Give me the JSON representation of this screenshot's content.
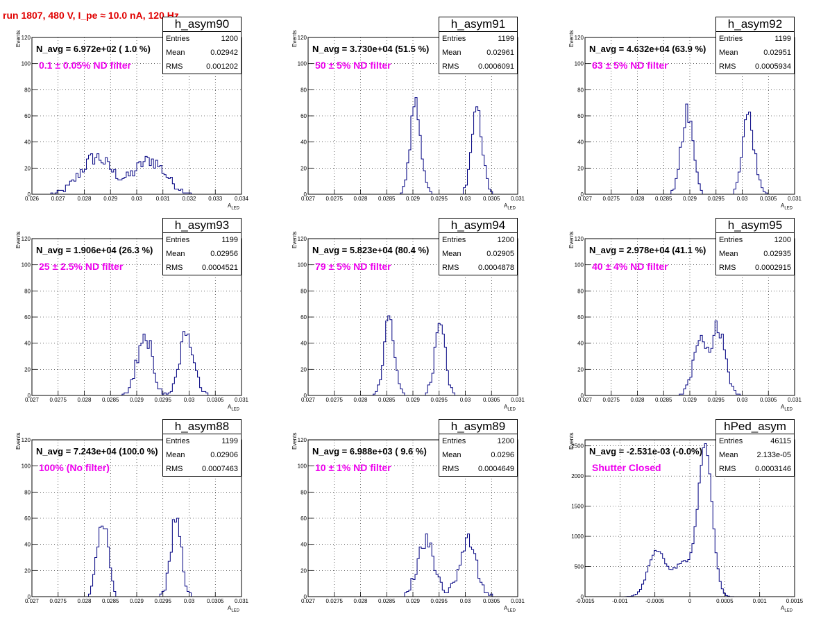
{
  "page_title": "run 1807,   480 V, I_pe ≈ 10.0 nA, 120 Hz",
  "axis": {
    "ylabel": "Events",
    "xlabel_main": "A",
    "xlabel_sub": "LED"
  },
  "stat_labels": {
    "entries": "Entries",
    "mean": "Mean",
    "rms": "RMS"
  },
  "colors": {
    "histogram": "#000080",
    "title": "#e00000",
    "filter_text": "#ee00ee"
  },
  "panels": [
    {
      "name": "h_asym90",
      "n_avg": "N_avg = 6.972e+02 ( 1.0 %)",
      "filter": "0.1 ± 0.05% ND filter",
      "entries": "1200",
      "mean": "0.02942",
      "rms": "0.001202"
    },
    {
      "name": "h_asym91",
      "n_avg": "N_avg = 3.730e+04 (51.5 %)",
      "filter": "50 ± 5% ND filter",
      "entries": "1199",
      "mean": "0.02961",
      "rms": "0.0006091"
    },
    {
      "name": "h_asym92",
      "n_avg": "N_avg = 4.632e+04 (63.9 %)",
      "filter": "63 ± 5% ND filter",
      "entries": "1199",
      "mean": "0.02951",
      "rms": "0.0005934"
    },
    {
      "name": "h_asym93",
      "n_avg": "N_avg = 1.906e+04 (26.3 %)",
      "filter": "25 ± 2.5% ND filter",
      "entries": "1199",
      "mean": "0.02956",
      "rms": "0.0004521"
    },
    {
      "name": "h_asym94",
      "n_avg": "N_avg = 5.823e+04 (80.4 %)",
      "filter": "79 ± 5% ND filter",
      "entries": "1200",
      "mean": "0.02905",
      "rms": "0.0004878"
    },
    {
      "name": "h_asym95",
      "n_avg": "N_avg = 2.978e+04 (41.1 %)",
      "filter": "40 ± 4% ND filter",
      "entries": "1200",
      "mean": "0.02935",
      "rms": "0.0002915"
    },
    {
      "name": "h_asym88",
      "n_avg": "N_avg = 7.243e+04 (100.0 %)",
      "filter": "100% (No filter)",
      "entries": "1199",
      "mean": "0.02906",
      "rms": "0.0007463"
    },
    {
      "name": "h_asym89",
      "n_avg": "N_avg = 6.988e+03 ( 9.6 %)",
      "filter": "10 ± 1% ND filter",
      "entries": "1200",
      "mean": "0.0296",
      "rms": "0.0004649"
    },
    {
      "name": "hPed_asym",
      "n_avg": "N_avg = -2.531e-03 (-0.0%)",
      "filter": "Shutter Closed",
      "entries": "46115",
      "mean": "2.133e-05",
      "rms": "0.0003146"
    }
  ],
  "chart_data": [
    {
      "type": "bar",
      "title": "h_asym90",
      "ylabel": "Events",
      "xlabel": "A_LED",
      "xlim": [
        0.026,
        0.034
      ],
      "ylim": [
        0,
        120
      ],
      "grid": true,
      "x_ticks": [
        "0.026",
        "0.027",
        "0.028",
        "0.029",
        "0.03",
        "0.031",
        "0.032",
        "0.033",
        "0.034"
      ],
      "y_ticks": [
        "0",
        "20",
        "40",
        "60",
        "80",
        "100",
        "120"
      ],
      "peaks": [
        {
          "center": 0.02845,
          "sigma": 0.0006,
          "amp": 28
        },
        {
          "center": 0.0305,
          "sigma": 0.0006,
          "amp": 26
        }
      ]
    },
    {
      "type": "bar",
      "title": "h_asym91",
      "ylabel": "Events",
      "xlabel": "A_LED",
      "xlim": [
        0.027,
        0.031
      ],
      "ylim": [
        0,
        120
      ],
      "grid": true,
      "x_ticks": [
        "0.027",
        "0.0275",
        "0.028",
        "0.0285",
        "0.029",
        "0.0295",
        "0.03",
        "0.0305",
        "0.031"
      ],
      "y_ticks": [
        "0",
        "20",
        "40",
        "60",
        "80",
        "100",
        "120"
      ],
      "peaks": [
        {
          "center": 0.02905,
          "sigma": 0.0001,
          "amp": 72
        },
        {
          "center": 0.03023,
          "sigma": 0.0001,
          "amp": 64
        }
      ]
    },
    {
      "type": "bar",
      "title": "h_asym92",
      "ylabel": "Events",
      "xlabel": "A_LED",
      "xlim": [
        0.027,
        0.031
      ],
      "ylim": [
        0,
        120
      ],
      "grid": true,
      "x_ticks": [
        "0.027",
        "0.0275",
        "0.028",
        "0.0285",
        "0.029",
        "0.0295",
        "0.03",
        "0.0305",
        "0.031"
      ],
      "y_ticks": [
        "0",
        "20",
        "40",
        "60",
        "80",
        "100",
        "120"
      ],
      "peaks": [
        {
          "center": 0.02895,
          "sigma": 0.00011,
          "amp": 62
        },
        {
          "center": 0.03012,
          "sigma": 0.00011,
          "amp": 62
        }
      ]
    },
    {
      "type": "bar",
      "title": "h_asym93",
      "ylabel": "Events",
      "xlabel": "A_LED",
      "xlim": [
        0.027,
        0.031
      ],
      "ylim": [
        0,
        120
      ],
      "grid": true,
      "x_ticks": [
        "0.027",
        "0.0275",
        "0.028",
        "0.0285",
        "0.029",
        "0.0295",
        "0.03",
        "0.0305",
        "0.031"
      ],
      "y_ticks": [
        "0",
        "20",
        "40",
        "60",
        "80",
        "100",
        "120"
      ],
      "peaks": [
        {
          "center": 0.02915,
          "sigma": 0.00014,
          "amp": 48
        },
        {
          "center": 0.02995,
          "sigma": 0.00014,
          "amp": 46
        }
      ]
    },
    {
      "type": "bar",
      "title": "h_asym94",
      "ylabel": "Events",
      "xlabel": "A_LED",
      "xlim": [
        0.027,
        0.031
      ],
      "ylim": [
        0,
        120
      ],
      "grid": true,
      "x_ticks": [
        "0.027",
        "0.0275",
        "0.028",
        "0.0285",
        "0.029",
        "0.0295",
        "0.03",
        "0.0305",
        "0.031"
      ],
      "y_ticks": [
        "0",
        "20",
        "40",
        "60",
        "80",
        "100",
        "120"
      ],
      "peaks": [
        {
          "center": 0.02855,
          "sigma": 0.0001,
          "amp": 58
        },
        {
          "center": 0.02952,
          "sigma": 0.0001,
          "amp": 58
        }
      ]
    },
    {
      "type": "bar",
      "title": "h_asym95",
      "ylabel": "Events",
      "xlabel": "A_LED",
      "xlim": [
        0.027,
        0.031
      ],
      "ylim": [
        0,
        120
      ],
      "grid": true,
      "x_ticks": [
        "0.027",
        "0.0275",
        "0.028",
        "0.0285",
        "0.029",
        "0.0295",
        "0.03",
        "0.0305",
        "0.031"
      ],
      "y_ticks": [
        "0",
        "20",
        "40",
        "60",
        "80",
        "100",
        "120"
      ],
      "peaks": [
        {
          "center": 0.0292,
          "sigma": 0.00013,
          "amp": 45
        },
        {
          "center": 0.02955,
          "sigma": 0.00013,
          "amp": 50
        }
      ]
    },
    {
      "type": "bar",
      "title": "h_asym88",
      "ylabel": "Events",
      "xlabel": "A_LED",
      "xlim": [
        0.027,
        0.031
      ],
      "ylim": [
        0,
        120
      ],
      "grid": true,
      "x_ticks": [
        "0.027",
        "0.0275",
        "0.028",
        "0.0285",
        "0.029",
        "0.0295",
        "0.03",
        "0.0305",
        "0.031"
      ],
      "y_ticks": [
        "0",
        "20",
        "40",
        "60",
        "80",
        "100",
        "120"
      ],
      "peaks": [
        {
          "center": 0.02835,
          "sigma": 0.0001,
          "amp": 62
        },
        {
          "center": 0.02975,
          "sigma": 0.0001,
          "amp": 60
        }
      ]
    },
    {
      "type": "bar",
      "title": "h_asym89",
      "ylabel": "Events",
      "xlabel": "A_LED",
      "xlim": [
        0.027,
        0.031
      ],
      "ylim": [
        0,
        120
      ],
      "grid": true,
      "x_ticks": [
        "0.027",
        "0.0275",
        "0.028",
        "0.0285",
        "0.029",
        "0.0295",
        "0.03",
        "0.0305",
        "0.031"
      ],
      "y_ticks": [
        "0",
        "20",
        "40",
        "60",
        "80",
        "100",
        "120"
      ],
      "peaks": [
        {
          "center": 0.02925,
          "sigma": 0.00016,
          "amp": 44
        },
        {
          "center": 0.03005,
          "sigma": 0.00016,
          "amp": 44
        }
      ]
    },
    {
      "type": "bar",
      "title": "hPed_asym",
      "ylabel": "Events",
      "xlabel": "A_LED",
      "xlim": [
        -0.0015,
        0.0015
      ],
      "ylim": [
        0,
        2600
      ],
      "grid": true,
      "x_ticks": [
        "-0.0015",
        "-0.001",
        "-0.0005",
        "0",
        "0.0005",
        "0.001",
        "0.0015"
      ],
      "y_ticks": [
        "0",
        "500",
        "1000",
        "1500",
        "2000",
        "2500"
      ],
      "peaks": [
        {
          "center": -0.00048,
          "sigma": 0.00012,
          "amp": 750
        },
        {
          "center": 0.00022,
          "sigma": 0.0001,
          "amp": 2450
        },
        {
          "center": -0.0001,
          "sigma": 0.00015,
          "amp": 550
        }
      ]
    }
  ]
}
